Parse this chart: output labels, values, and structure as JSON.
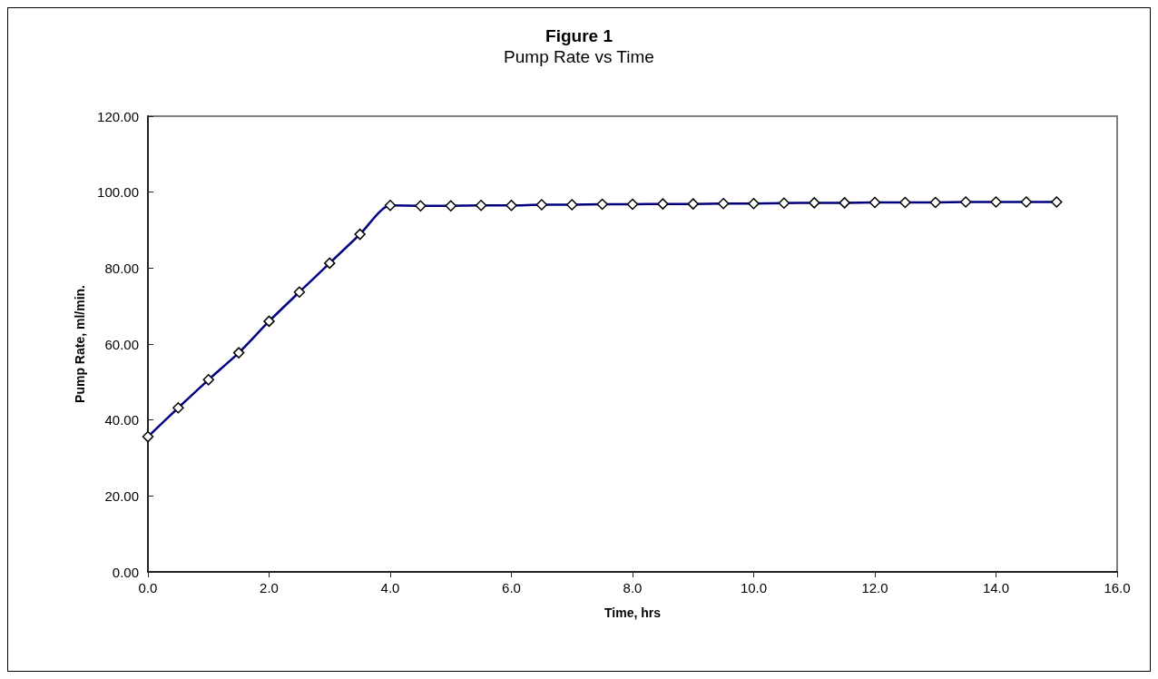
{
  "chart_data": {
    "type": "line",
    "title": "Figure 1",
    "subtitle": "Pump Rate vs Time",
    "xlabel": "Time, hrs",
    "ylabel": "Pump Rate, ml/min.",
    "x": [
      0,
      0.5,
      1,
      1.5,
      2,
      2.5,
      3,
      3.5,
      4,
      4.5,
      5,
      5.5,
      6,
      6.5,
      7,
      7.5,
      8,
      8.5,
      9,
      9.5,
      10,
      10.5,
      11,
      11.5,
      12,
      12.5,
      13,
      13.5,
      14,
      14.5,
      15
    ],
    "series": [
      {
        "color": "#000080",
        "values": [
          35.6,
          43.2,
          50.6,
          57.7,
          66.0,
          73.7,
          81.3,
          88.9,
          96.5,
          96.4,
          96.4,
          96.5,
          96.5,
          96.7,
          96.7,
          96.8,
          96.8,
          96.9,
          96.9,
          97.0,
          97.0,
          97.1,
          97.2,
          97.2,
          97.3,
          97.3,
          97.3,
          97.4,
          97.4,
          97.4,
          97.4
        ]
      }
    ],
    "xlim": [
      0,
      16
    ],
    "xticks": [
      {
        "value": 0,
        "label": "0.0"
      },
      {
        "value": 2,
        "label": "2.0"
      },
      {
        "value": 4,
        "label": "4.0"
      },
      {
        "value": 6,
        "label": "6.0"
      },
      {
        "value": 8,
        "label": "8.0"
      },
      {
        "value": 10,
        "label": "10.0"
      },
      {
        "value": 12,
        "label": "12.0"
      },
      {
        "value": 14,
        "label": "14.0"
      },
      {
        "value": 16,
        "label": "16.0"
      }
    ],
    "ylim": [
      0,
      120
    ],
    "yticks": [
      {
        "value": 0,
        "label": "0.00"
      },
      {
        "value": 20,
        "label": "20.00"
      },
      {
        "value": 40,
        "label": "40.00"
      },
      {
        "value": 60,
        "label": "60.00"
      },
      {
        "value": 80,
        "label": "80.00"
      },
      {
        "value": 100,
        "label": "100.00"
      },
      {
        "value": 120,
        "label": "120.00"
      }
    ],
    "grid": false,
    "marker": "diamond",
    "line_style": "solid"
  }
}
